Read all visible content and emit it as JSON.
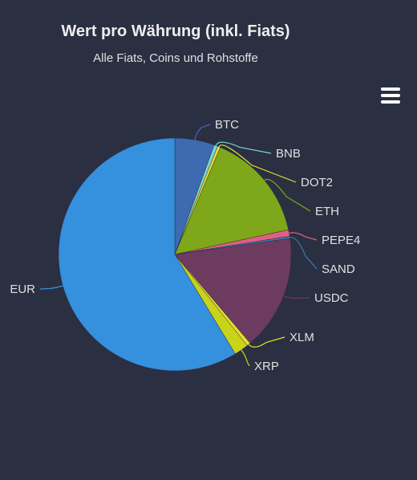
{
  "chart_data": {
    "type": "pie",
    "title": "Wert pro Währung (inkl. Fiats)",
    "subtitle": "Alle Fiats, Coins und Rohstoffe",
    "slices": [
      {
        "label": "BTC",
        "value": 5.5,
        "color": "#3d6ab0"
      },
      {
        "label": "BNB",
        "value": 0.5,
        "color": "#7ad6d4"
      },
      {
        "label": "DOT2",
        "value": 0.4,
        "color": "#e8df2c"
      },
      {
        "label": "ETH",
        "value": 15.2,
        "color": "#7ea81a"
      },
      {
        "label": "PEPE4",
        "value": 0.9,
        "color": "#e06080"
      },
      {
        "label": "SAND",
        "value": 0.3,
        "color": "#3e78b6"
      },
      {
        "label": "USDC",
        "value": 16.0,
        "color": "#6d3b60"
      },
      {
        "label": "XLM",
        "value": 0.5,
        "color": "#e8df2c"
      },
      {
        "label": "XRP",
        "value": 2.0,
        "color": "#c9d31a"
      },
      {
        "label": "EUR",
        "value": 58.7,
        "color": "#3590de"
      }
    ],
    "legend": "none"
  },
  "toolbar": {
    "menu_icon": "hamburger-menu-icon"
  }
}
